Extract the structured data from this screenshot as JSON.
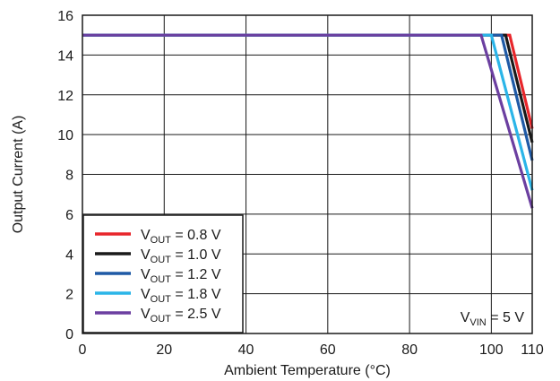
{
  "chart_data": {
    "type": "line",
    "xlabel": "Ambient Temperature (°C)",
    "ylabel": "Output Current (A)",
    "xlim": [
      0,
      110
    ],
    "ylim": [
      0,
      16
    ],
    "x_ticks": [
      "0",
      "20",
      "40",
      "60",
      "80",
      "100",
      "110"
    ],
    "y_ticks": [
      "0",
      "2",
      "4",
      "6",
      "8",
      "10",
      "12",
      "14",
      "16"
    ],
    "grid": true,
    "legend_position": "bottom-left",
    "annotation": {
      "main": "V",
      "sub": "VIN",
      "rest": " = 5 V",
      "position": "bottom-right"
    },
    "series": [
      {
        "name": "VOUT = 0.8 V",
        "label_main": "V",
        "label_sub": "OUT",
        "label_rest": " = 0.8 V",
        "color": "#e8262b",
        "x": [
          0,
          104.5,
          110
        ],
        "y": [
          15,
          15,
          10.3
        ]
      },
      {
        "name": "VOUT = 1.0 V",
        "label_main": "V",
        "label_sub": "OUT",
        "label_rest": " = 1.0 V",
        "color": "#1a1a1a",
        "x": [
          0,
          103.5,
          110
        ],
        "y": [
          15,
          15,
          9.6
        ]
      },
      {
        "name": "VOUT = 1.2 V",
        "label_main": "V",
        "label_sub": "OUT",
        "label_rest": " = 1.2 V",
        "color": "#1f5aa6",
        "x": [
          0,
          102.5,
          110
        ],
        "y": [
          15,
          15,
          8.7
        ]
      },
      {
        "name": "VOUT = 1.8 V",
        "label_main": "V",
        "label_sub": "OUT",
        "label_rest": " = 1.8 V",
        "color": "#2bb5e8",
        "x": [
          0,
          100,
          110
        ],
        "y": [
          15,
          15,
          7.2
        ]
      },
      {
        "name": "VOUT = 2.5 V",
        "label_main": "V",
        "label_sub": "OUT",
        "label_rest": " = 2.5 V",
        "color": "#6b3fa0",
        "x": [
          0,
          97.5,
          110
        ],
        "y": [
          15,
          15,
          6.3
        ]
      }
    ]
  }
}
